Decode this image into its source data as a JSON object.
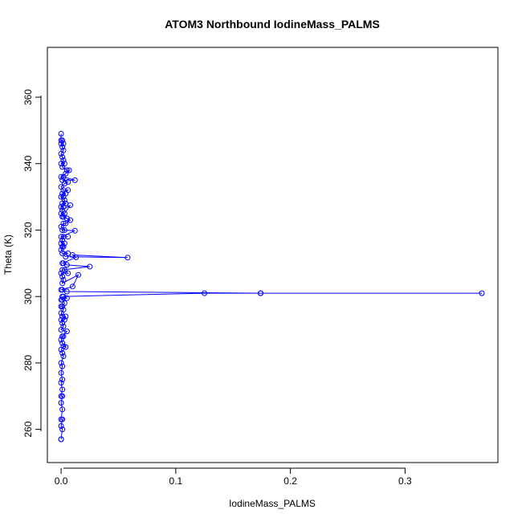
{
  "chart_data": {
    "type": "line",
    "title": "ATOM3 Northbound IodineMass_PALMS",
    "xlabel": "IodineMass_PALMS",
    "ylabel": "Theta (K)",
    "xlim": [
      -0.012,
      0.381
    ],
    "ylim": [
      250,
      375
    ],
    "xticks": [
      0,
      0.1,
      0.2,
      0.3
    ],
    "xtick_labels": [
      "0.0",
      "0.1",
      "0.2",
      "0.3"
    ],
    "yticks": [
      260,
      280,
      300,
      320,
      340,
      360
    ],
    "ytick_labels": [
      "260",
      "280",
      "300",
      "320",
      "340",
      "360"
    ],
    "grid": false,
    "color": "#0000ff",
    "markers": "open-circle",
    "series": [
      {
        "values": [
          [
            0.0,
            257
          ],
          [
            0.0,
            257
          ],
          [
            0.001,
            260
          ],
          [
            0.0,
            261
          ],
          [
            0.001,
            263
          ],
          [
            0.0,
            263
          ],
          [
            0.001,
            266
          ],
          [
            0.0,
            268
          ],
          [
            0.001,
            270
          ],
          [
            0.0,
            270
          ],
          [
            0.001,
            272
          ],
          [
            0.0,
            274
          ],
          [
            0.001,
            275
          ],
          [
            0.0,
            277
          ],
          [
            0.001,
            279
          ],
          [
            0.0,
            280
          ],
          [
            0.002,
            282
          ],
          [
            0.001,
            283
          ],
          [
            0.0,
            284
          ],
          [
            0.002,
            285
          ],
          [
            0.004,
            284.8
          ],
          [
            0.001,
            286
          ],
          [
            0.0,
            287
          ],
          [
            0.002,
            288
          ],
          [
            0.001,
            288
          ],
          [
            0.005,
            289.5
          ],
          [
            0.0,
            290
          ],
          [
            0.002,
            291
          ],
          [
            0.001,
            292
          ],
          [
            0.0,
            293
          ],
          [
            0.003,
            293
          ],
          [
            0.004,
            294
          ],
          [
            0.001,
            294
          ],
          [
            0.0,
            295
          ],
          [
            0.002,
            296
          ],
          [
            0.001,
            297
          ],
          [
            0.0,
            297
          ],
          [
            0.003,
            298
          ],
          [
            0.001,
            299
          ],
          [
            0.0,
            299
          ],
          [
            0.005,
            299.5
          ],
          [
            0.002,
            300
          ],
          [
            0.001,
            300
          ],
          [
            0.125,
            301.0
          ],
          [
            0.174,
            301.0
          ],
          [
            0.367,
            301.0
          ],
          [
            0.174,
            301.0
          ],
          [
            0.005,
            301.5
          ],
          [
            0.001,
            302
          ],
          [
            0.0,
            302
          ],
          [
            0.01,
            303
          ],
          [
            0.015,
            306.5
          ],
          [
            0.001,
            304
          ],
          [
            0.002,
            305
          ],
          [
            0.001,
            306
          ],
          [
            0.0,
            307
          ],
          [
            0.006,
            307
          ],
          [
            0.003,
            308
          ],
          [
            0.001,
            308
          ],
          [
            0.025,
            309
          ],
          [
            0.005,
            309.5
          ],
          [
            0.002,
            310
          ],
          [
            0.001,
            310
          ],
          [
            0.013,
            311.8
          ],
          [
            0.01,
            312.5
          ],
          [
            0.058,
            311.7
          ],
          [
            0.004,
            312
          ],
          [
            0.001,
            313
          ],
          [
            0.006,
            313
          ],
          [
            0.0,
            314
          ],
          [
            0.002,
            315
          ],
          [
            0.001,
            315
          ],
          [
            0.003,
            316
          ],
          [
            0.0,
            316
          ],
          [
            0.001,
            317
          ],
          [
            0.002,
            318
          ],
          [
            0.006,
            318
          ],
          [
            0.0,
            318
          ],
          [
            0.012,
            319.8
          ],
          [
            0.001,
            320
          ],
          [
            0.003,
            320
          ],
          [
            0.0,
            321
          ],
          [
            0.002,
            322
          ],
          [
            0.004,
            322
          ],
          [
            0.008,
            323
          ],
          [
            0.005,
            323.5
          ],
          [
            0.001,
            324
          ],
          [
            0.002,
            324
          ],
          [
            0.0,
            325
          ],
          [
            0.003,
            325
          ],
          [
            0.008,
            327.5
          ],
          [
            0.001,
            326
          ],
          [
            0.002,
            327
          ],
          [
            0.0,
            327
          ],
          [
            0.004,
            328
          ],
          [
            0.001,
            328
          ],
          [
            0.003,
            329
          ],
          [
            0.0,
            330
          ],
          [
            0.002,
            330
          ],
          [
            0.004,
            331
          ],
          [
            0.001,
            331
          ],
          [
            0.006,
            332
          ],
          [
            0.002,
            332
          ],
          [
            0.0,
            333
          ],
          [
            0.003,
            334
          ],
          [
            0.006,
            334.5
          ],
          [
            0.001,
            335
          ],
          [
            0.012,
            335.0
          ],
          [
            0.002,
            336
          ],
          [
            0.0,
            336
          ],
          [
            0.004,
            337
          ],
          [
            0.007,
            338
          ],
          [
            0.005,
            338
          ],
          [
            0.001,
            339
          ],
          [
            0.003,
            340
          ],
          [
            0.0,
            340
          ],
          [
            0.002,
            341
          ],
          [
            0.001,
            342
          ],
          [
            0.0,
            343
          ],
          [
            0.002,
            344
          ],
          [
            0.001,
            345
          ],
          [
            0.0,
            346
          ],
          [
            0.002,
            346
          ],
          [
            0.001,
            347
          ],
          [
            0.0,
            347
          ],
          [
            0.0,
            349
          ]
        ]
      }
    ]
  }
}
